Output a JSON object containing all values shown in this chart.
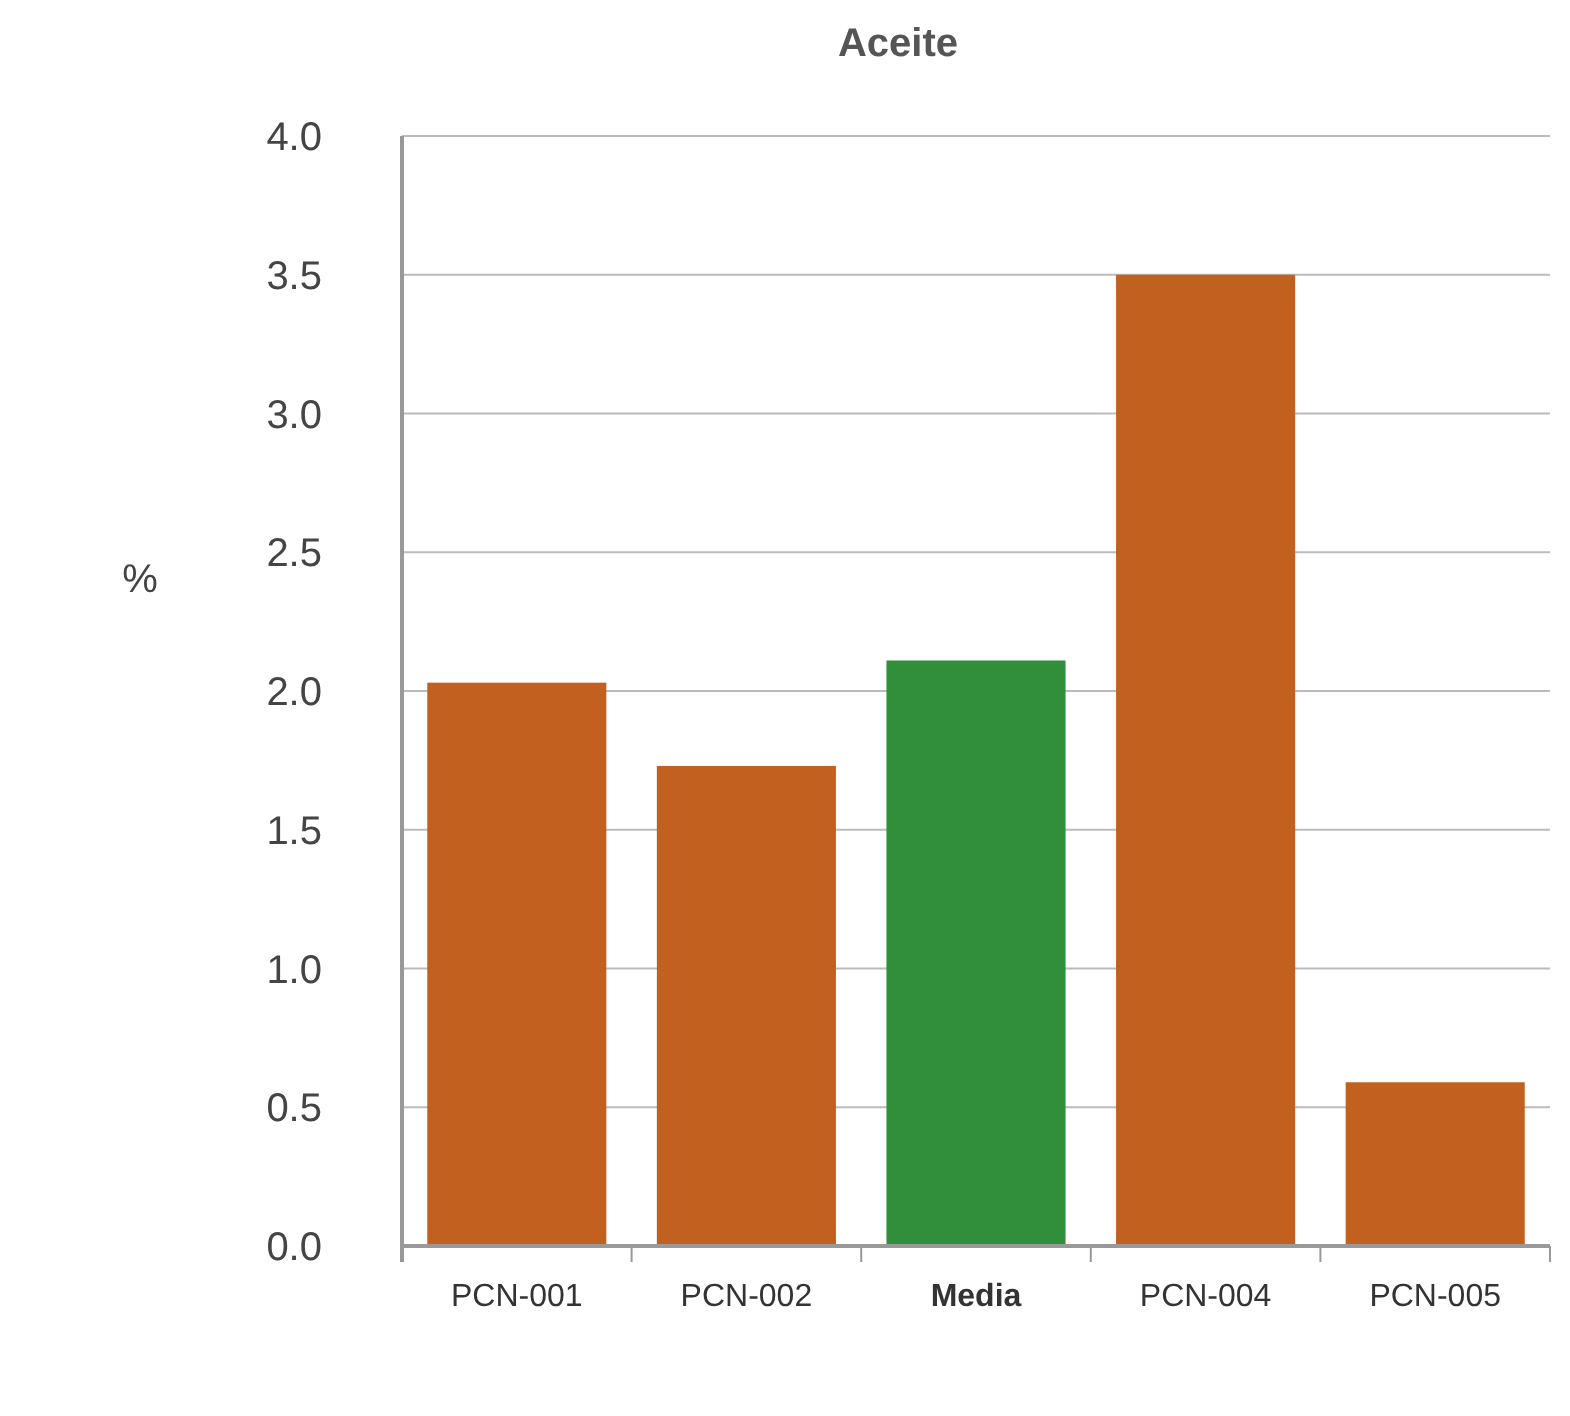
{
  "chart_data": {
    "type": "bar",
    "title": "Aceite",
    "ylabel": "%",
    "categories": [
      "PCN-001",
      "PCN-002",
      "Media",
      "PCN-004",
      "PCN-005"
    ],
    "values": [
      2.03,
      1.73,
      2.11,
      3.5,
      0.59
    ],
    "colors": [
      "#c2611f",
      "#c2611f",
      "#2f8f3a",
      "#c2611f",
      "#c2611f"
    ],
    "ylim": [
      0,
      4
    ],
    "yticks": [
      {
        "value": 0,
        "label": "0.0"
      },
      {
        "value": 0.5,
        "label": "0.5"
      },
      {
        "value": 1,
        "label": "1.0"
      },
      {
        "value": 1.5,
        "label": "1.5"
      },
      {
        "value": 2,
        "label": "2.0"
      },
      {
        "value": 2.5,
        "label": "2.5"
      },
      {
        "value": 3,
        "label": "3.0"
      },
      {
        "value": 3.5,
        "label": "3.5"
      },
      {
        "value": 4,
        "label": "4.0"
      }
    ],
    "grid": "y"
  }
}
